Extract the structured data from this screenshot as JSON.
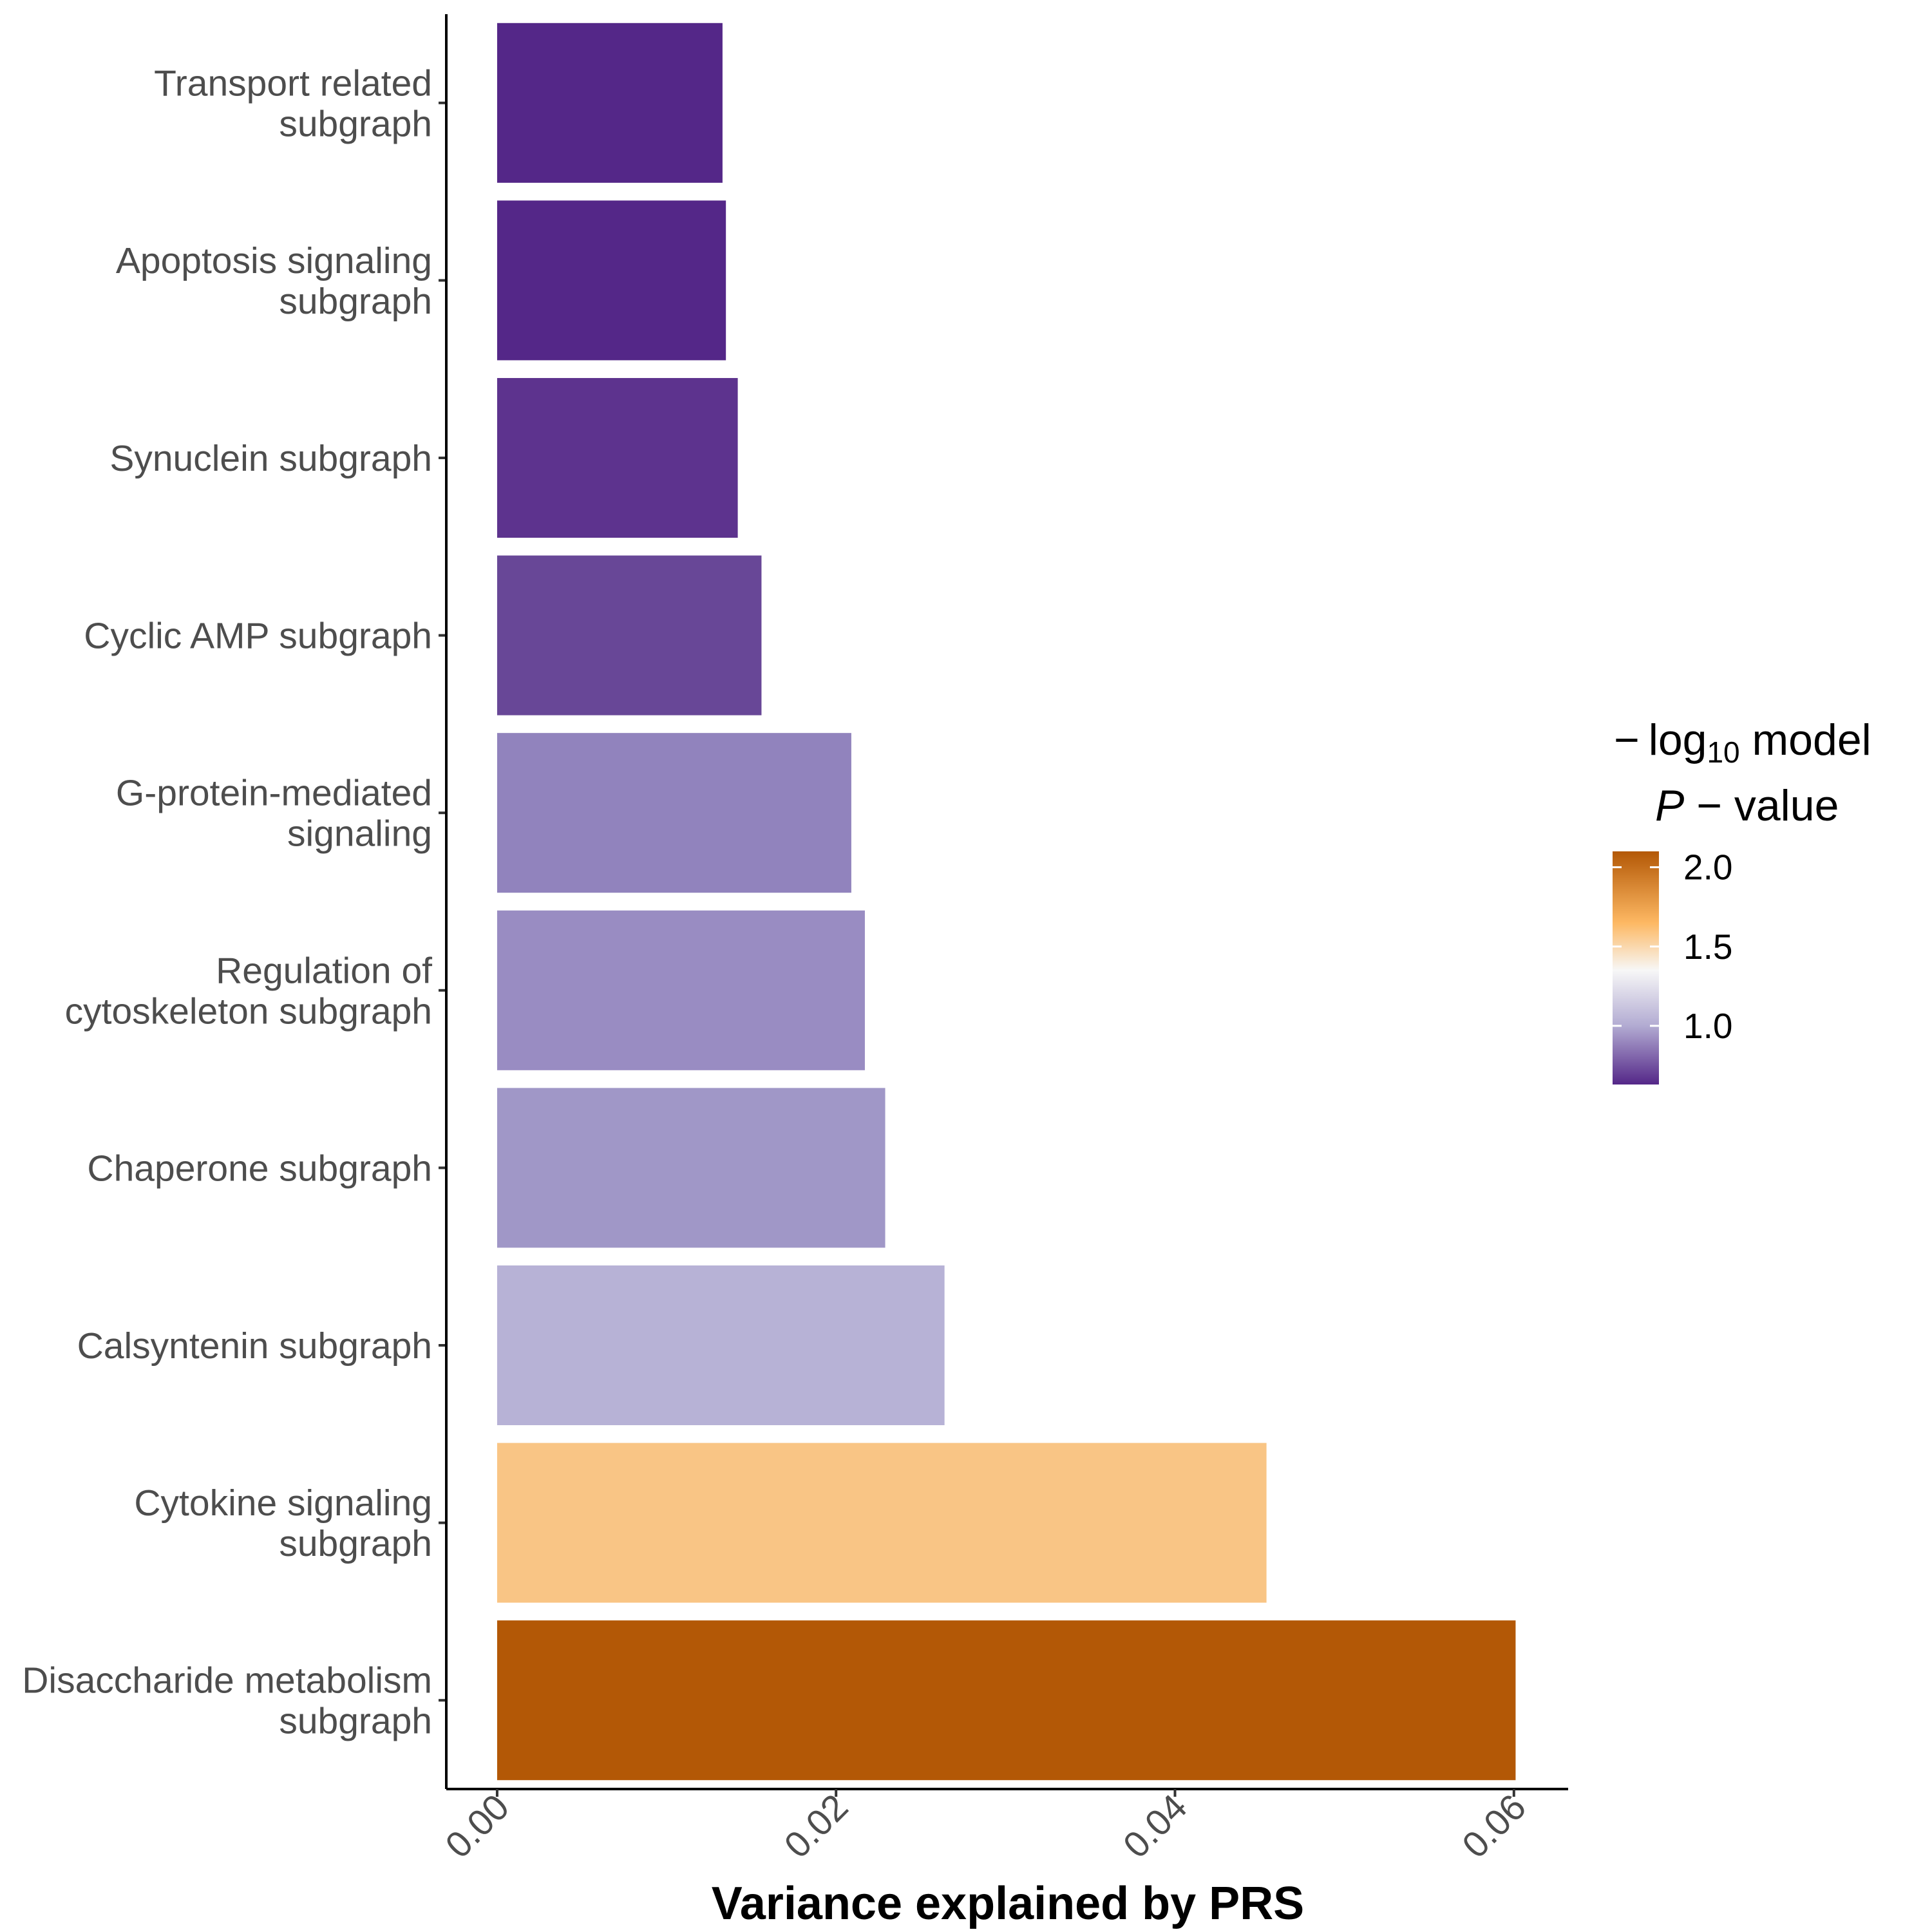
{
  "chart_data": {
    "type": "bar",
    "orientation": "horizontal",
    "categories": [
      [
        "Transport related",
        "subgraph"
      ],
      [
        "Apoptosis signaling",
        "subgraph"
      ],
      [
        "Synuclein subgraph"
      ],
      [
        "Cyclic AMP subgraph"
      ],
      [
        "G-protein-mediated",
        "signaling"
      ],
      [
        "Regulation of",
        "cytoskeleton subgraph"
      ],
      [
        "Chaperone subgraph"
      ],
      [
        "Calsyntenin subgraph"
      ],
      [
        "Cytokine signaling",
        "subgraph"
      ],
      [
        "Disaccharide metabolism",
        "subgraph"
      ]
    ],
    "values": [
      0.0133,
      0.0135,
      0.0142,
      0.0156,
      0.0209,
      0.0217,
      0.0229,
      0.0264,
      0.0454,
      0.0601
    ],
    "neg_log10_p": [
      0.65,
      0.66,
      0.7,
      0.76,
      1.02,
      1.04,
      1.06,
      1.2,
      1.63,
      2.07
    ],
    "colors": [
      "#542788",
      "#542788",
      "#5d338e",
      "#684797",
      "#9183bd",
      "#998cc2",
      "#a097c7",
      "#b7b2d6",
      "#f9c585",
      "#b35806"
    ],
    "xlabel": "Variance explained by PRS",
    "xlim": [
      -0.003,
      0.0632
    ],
    "xticks": [
      0.0,
      0.02,
      0.04,
      0.06
    ],
    "xtick_labels": [
      "0.00",
      "0.02",
      "0.04",
      "0.06"
    ],
    "legend": {
      "title_line1_minus": "−",
      "title_line1_log": "log",
      "title_line1_sub": "10",
      "title_line1_rest": " model",
      "title_line2_p": "P",
      "title_line2_rest": " − value",
      "range": [
        0.63,
        2.1
      ],
      "ticks": [
        1.0,
        1.5,
        2.0
      ],
      "tick_labels": [
        "1.0",
        "1.5",
        "2.0"
      ],
      "gradient_stops": [
        {
          "v": 0.63,
          "color": "#542788"
        },
        {
          "v": 1.0,
          "color": "#b2abd2"
        },
        {
          "v": 1.35,
          "color": "#f7f7f7"
        },
        {
          "v": 1.65,
          "color": "#fdb863"
        },
        {
          "v": 2.1,
          "color": "#b35806"
        }
      ]
    },
    "grid": false,
    "legend_position": "right"
  }
}
